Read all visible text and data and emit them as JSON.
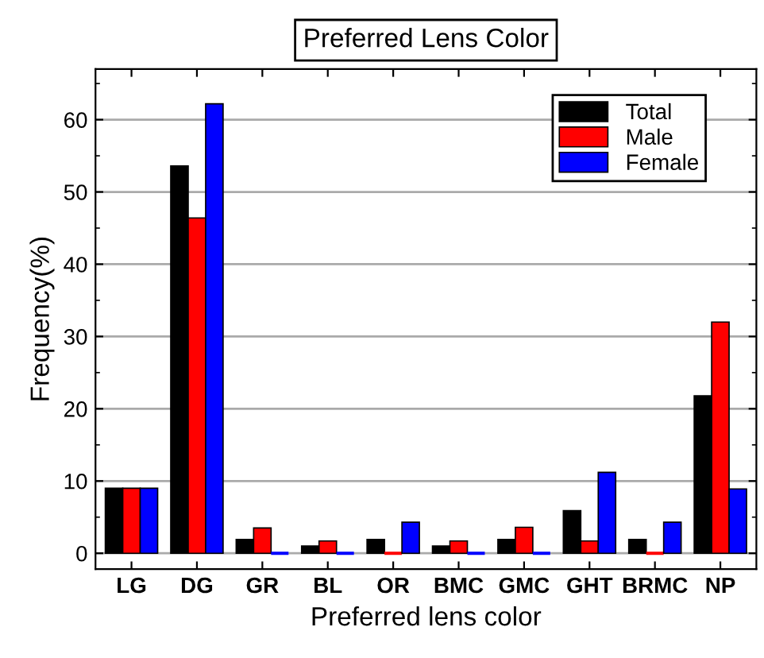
{
  "chart_data": {
    "type": "bar",
    "title": "Preferred Lens Color",
    "xlabel": "Preferred lens color",
    "ylabel": "Frequency(%)",
    "categories": [
      "LG",
      "DG",
      "GR",
      "BL",
      "OR",
      "BMC",
      "GMC",
      "GHT",
      "BRMC",
      "NP"
    ],
    "series": [
      {
        "name": "Total",
        "color": "#000000",
        "values": [
          9.0,
          53.6,
          1.9,
          1.0,
          1.9,
          1.0,
          1.9,
          5.9,
          1.9,
          21.8
        ]
      },
      {
        "name": "Male",
        "color": "#ff0000",
        "values": [
          9.0,
          46.4,
          3.5,
          1.7,
          0,
          1.7,
          3.6,
          1.7,
          0,
          32.0
        ]
      },
      {
        "name": "Female",
        "color": "#0000ff",
        "values": [
          9.0,
          62.2,
          0,
          0,
          4.3,
          0,
          0,
          11.2,
          4.3,
          8.9
        ]
      }
    ],
    "ylim": [
      -2.2,
      67
    ],
    "yticks": [
      0,
      10,
      20,
      30,
      40,
      50,
      60
    ],
    "grid": "y",
    "legend": "top right"
  }
}
